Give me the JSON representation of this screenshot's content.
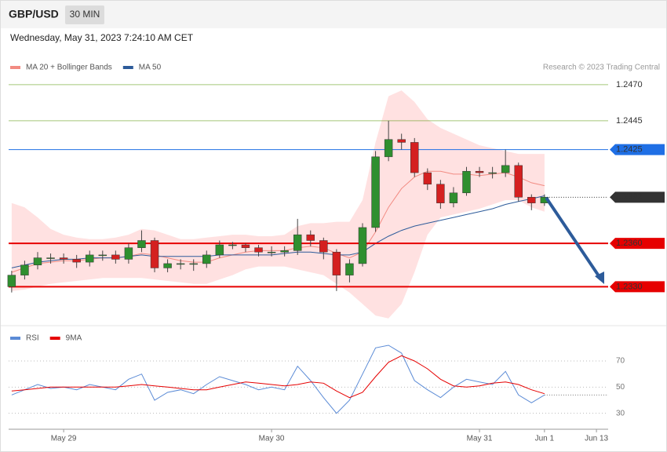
{
  "header": {
    "symbol": "GBP/USD",
    "interval": "30 MIN",
    "timestamp": "Wednesday, May 31, 2023 7:24:10 AM CET",
    "credit": "Research © 2023 Trading Central"
  },
  "chart_data": [
    {
      "type": "candlestick",
      "x": [
        0,
        3,
        6,
        9,
        12,
        15,
        18,
        21,
        24,
        27,
        30,
        33,
        36,
        39,
        42,
        45,
        48,
        51,
        54,
        57,
        60,
        63,
        66,
        69,
        72,
        75,
        78,
        81,
        84,
        87,
        90,
        93,
        96,
        99,
        102,
        105,
        108,
        111,
        114,
        117,
        120,
        123
      ],
      "open": [
        1.233,
        1.2338,
        1.2345,
        1.235,
        1.235,
        1.2349,
        1.2347,
        1.2352,
        1.2352,
        1.2349,
        1.2357,
        1.2362,
        1.2343,
        1.2346,
        1.2346,
        1.2346,
        1.2352,
        1.2359,
        1.2359,
        1.2357,
        1.2354,
        1.2354,
        1.2355,
        1.2366,
        1.2362,
        1.2354,
        1.2338,
        1.2346,
        1.2371,
        1.242,
        1.2432,
        1.243,
        1.2409,
        1.2401,
        1.2388,
        1.2395,
        1.241,
        1.2409,
        1.2409,
        1.2414,
        1.2392,
        1.2388
      ],
      "high": [
        1.2341,
        1.2348,
        1.2354,
        1.2353,
        1.2353,
        1.2352,
        1.2355,
        1.2355,
        1.2355,
        1.236,
        1.2369,
        1.2364,
        1.2349,
        1.2349,
        1.2349,
        1.2355,
        1.2362,
        1.2361,
        1.236,
        1.2359,
        1.2358,
        1.2358,
        1.2377,
        1.2369,
        1.2364,
        1.2356,
        1.2349,
        1.2374,
        1.2424,
        1.2445,
        1.2436,
        1.2433,
        1.2412,
        1.2404,
        1.2399,
        1.2413,
        1.2413,
        1.2413,
        1.2425,
        1.2416,
        1.2394,
        1.2394
      ],
      "low": [
        1.2326,
        1.2335,
        1.2342,
        1.2346,
        1.2346,
        1.2343,
        1.2344,
        1.2348,
        1.2346,
        1.2346,
        1.2354,
        1.234,
        1.234,
        1.2342,
        1.2341,
        1.2343,
        1.235,
        1.2356,
        1.2354,
        1.2351,
        1.2351,
        1.2351,
        1.2352,
        1.2358,
        1.2349,
        1.2327,
        1.2333,
        1.2344,
        1.2368,
        1.2417,
        1.2425,
        1.2406,
        1.2397,
        1.2384,
        1.2385,
        1.2393,
        1.2406,
        1.2405,
        1.2406,
        1.2389,
        1.2383,
        1.2386
      ],
      "close": [
        1.2338,
        1.2345,
        1.235,
        1.235,
        1.2349,
        1.2347,
        1.2352,
        1.2352,
        1.2349,
        1.2357,
        1.2362,
        1.2343,
        1.2346,
        1.2346,
        1.2346,
        1.2352,
        1.2359,
        1.2359,
        1.2357,
        1.2354,
        1.2354,
        1.2355,
        1.2366,
        1.2362,
        1.2354,
        1.2338,
        1.2346,
        1.2371,
        1.242,
        1.2432,
        1.243,
        1.2409,
        1.2401,
        1.2388,
        1.2395,
        1.241,
        1.2409,
        1.2409,
        1.2414,
        1.2392,
        1.2388,
        1.2392
      ],
      "up_color": "#2f8f2f",
      "down_color": "#d42020",
      "series": [
        {
          "name": "MA 20 + Bollinger Bands",
          "color": "#f28b82",
          "band_color": "#ffd9d9",
          "values": [
            1.234,
            1.2343,
            1.2346,
            1.2347,
            1.2348,
            1.2348,
            1.2349,
            1.235,
            1.235,
            1.2351,
            1.2353,
            1.2352,
            1.235,
            1.2348,
            1.2347,
            1.2347,
            1.235,
            1.2352,
            1.2354,
            1.2355,
            1.2355,
            1.2355,
            1.2357,
            1.2358,
            1.2357,
            1.2353,
            1.235,
            1.2354,
            1.2368,
            1.2385,
            1.2398,
            1.2406,
            1.241,
            1.241,
            1.2408,
            1.2408,
            1.2407,
            1.2408,
            1.2409,
            1.2406,
            1.2402,
            1.24
          ],
          "upper": [
            1.2388,
            1.2385,
            1.2378,
            1.237,
            1.2366,
            1.2364,
            1.2363,
            1.2363,
            1.2364,
            1.2366,
            1.237,
            1.2369,
            1.2366,
            1.2363,
            1.2363,
            1.2364,
            1.2365,
            1.2366,
            1.2366,
            1.2365,
            1.2365,
            1.2366,
            1.2372,
            1.2374,
            1.2374,
            1.2375,
            1.2375,
            1.239,
            1.243,
            1.2462,
            1.2466,
            1.2458,
            1.2446,
            1.244,
            1.2436,
            1.2432,
            1.2428,
            1.2426,
            1.2424,
            1.2422,
            1.2422,
            1.2422
          ],
          "lower": [
            1.2327,
            1.2328,
            1.233,
            1.2332,
            1.2333,
            1.2334,
            1.2335,
            1.2336,
            1.2336,
            1.2336,
            1.2336,
            1.2335,
            1.2334,
            1.2333,
            1.2332,
            1.2332,
            1.2335,
            1.2338,
            1.2342,
            1.2344,
            1.2344,
            1.2344,
            1.2342,
            1.234,
            1.2338,
            1.2332,
            1.2326,
            1.2318,
            1.231,
            1.2308,
            1.2318,
            1.234,
            1.2366,
            1.2378,
            1.238,
            1.2382,
            1.2384,
            1.2387,
            1.239,
            1.239,
            1.2385,
            1.2382
          ]
        },
        {
          "name": "MA 50",
          "color": "#2d5b9a",
          "values": [
            1.2343,
            1.2345,
            1.2347,
            1.2348,
            1.2349,
            1.2349,
            1.235,
            1.235,
            1.235,
            1.2351,
            1.2352,
            1.2351,
            1.2351,
            1.2351,
            1.2351,
            1.2351,
            1.2352,
            1.2352,
            1.2352,
            1.2352,
            1.2352,
            1.2353,
            1.2354,
            1.2354,
            1.2353,
            1.2352,
            1.2352,
            1.2354,
            1.236,
            1.2365,
            1.2369,
            1.2372,
            1.2374,
            1.2376,
            1.2378,
            1.238,
            1.2382,
            1.2384,
            1.2387,
            1.2389,
            1.2391,
            1.2393
          ]
        }
      ],
      "levels": [
        {
          "value": 1.247,
          "label": "1.2470",
          "color": "#6aa121",
          "style": "line"
        },
        {
          "value": 1.2445,
          "label": "1.2445",
          "color": "#6aa121",
          "style": "line"
        },
        {
          "value": 1.2425,
          "label": "1.2425",
          "color": "#1f6fe5",
          "style": "tag"
        },
        {
          "value": 1.2392,
          "label": "1.2392",
          "color": "#333333",
          "style": "dotted-tag"
        },
        {
          "value": 1.236,
          "label": "1.2360",
          "color": "#e60000",
          "style": "tag"
        },
        {
          "value": 1.233,
          "label": "1.2330",
          "color": "#e60000",
          "style": "tag"
        }
      ],
      "xlim": [
        -0.7,
        137.7
      ],
      "ylim": [
        1.2303,
        1.2477
      ]
    },
    {
      "type": "line",
      "x": [
        0,
        3,
        6,
        9,
        12,
        15,
        18,
        21,
        24,
        27,
        30,
        33,
        36,
        39,
        42,
        45,
        48,
        51,
        54,
        57,
        60,
        63,
        66,
        69,
        72,
        75,
        78,
        81,
        84,
        87,
        90,
        93,
        96,
        99,
        102,
        105,
        108,
        111,
        114,
        117,
        120,
        123
      ],
      "series": [
        {
          "name": "RSI",
          "color": "#5b8bd6",
          "values": [
            44,
            48,
            52,
            49,
            50,
            48,
            52,
            50,
            48,
            56,
            60,
            40,
            46,
            48,
            45,
            52,
            58,
            55,
            52,
            48,
            50,
            48,
            66,
            55,
            42,
            30,
            40,
            60,
            80,
            82,
            76,
            55,
            48,
            42,
            50,
            56,
            54,
            52,
            62,
            44,
            38,
            44
          ]
        },
        {
          "name": "9MA",
          "color": "#e60000",
          "values": [
            47,
            48,
            49,
            50,
            50,
            50,
            50,
            50,
            50,
            51,
            52,
            51,
            50,
            49,
            48,
            48,
            50,
            52,
            54,
            53,
            52,
            51,
            52,
            54,
            53,
            47,
            42,
            46,
            58,
            69,
            74,
            70,
            64,
            56,
            51,
            50,
            51,
            53,
            54,
            52,
            48,
            45
          ]
        }
      ],
      "xlim": [
        -0.7,
        137.7
      ],
      "ylim": [
        22,
        91
      ],
      "yticks": [
        30,
        50,
        70
      ],
      "grid": true,
      "xticks": [
        {
          "value": 12,
          "label": "May 29"
        },
        {
          "value": 60,
          "label": "May 30"
        },
        {
          "value": 108,
          "label": "May 31"
        },
        {
          "value": 123,
          "label": "Jun 1"
        },
        {
          "value": 135,
          "label": "Jun 13"
        }
      ]
    }
  ]
}
